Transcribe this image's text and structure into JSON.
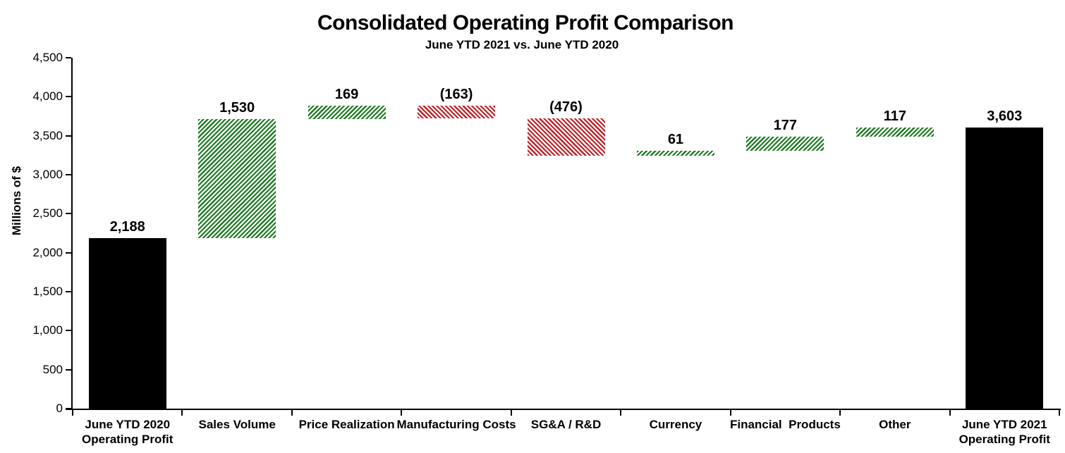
{
  "chart_data": {
    "type": "bar",
    "subtype": "waterfall",
    "title": "Consolidated Operating Profit Comparison",
    "subtitle": "June YTD 2021 vs. June YTD 2020",
    "xlabel": "",
    "ylabel": "Millions of $",
    "ylim": [
      0,
      4500
    ],
    "ytick_step": 500,
    "ytick_labels": [
      "0",
      "500",
      "1,000",
      "1,500",
      "2,000",
      "2,500",
      "3,000",
      "3,500",
      "4,000",
      "4,500"
    ],
    "grid": false,
    "legend": false,
    "categories": [
      "June YTD 2020\nOperating Profit",
      "Sales Volume",
      "Price Realization",
      "Manufacturing Costs",
      "SG&A / R&D",
      "Currency",
      "Financial  Products",
      "Other",
      "June YTD 2021\nOperating Profit"
    ],
    "bars": [
      {
        "label": "June YTD 2020\nOperating Profit",
        "value": 2188,
        "display": "2,188",
        "kind": "total"
      },
      {
        "label": "Sales Volume",
        "value": 1530,
        "display": "1,530",
        "kind": "increase"
      },
      {
        "label": "Price Realization",
        "value": 169,
        "display": "169",
        "kind": "increase"
      },
      {
        "label": "Manufacturing Costs",
        "value": -163,
        "display": "(163)",
        "kind": "decrease"
      },
      {
        "label": "SG&A / R&D",
        "value": -476,
        "display": "(476)",
        "kind": "decrease"
      },
      {
        "label": "Currency",
        "value": 61,
        "display": "61",
        "kind": "increase"
      },
      {
        "label": "Financial  Products",
        "value": 177,
        "display": "177",
        "kind": "increase"
      },
      {
        "label": "Other",
        "value": 117,
        "display": "117",
        "kind": "increase"
      },
      {
        "label": "June YTD 2021\nOperating Profit",
        "value": 3603,
        "display": "3,603",
        "kind": "total"
      }
    ],
    "colors": {
      "total": "#000000",
      "increase": "#1e7b22",
      "decrease": "#c02127",
      "hatch_background": "#ffffff",
      "axis": "#000000",
      "text": "#000000"
    },
    "hatch": {
      "increase_direction": "forward-slash",
      "decrease_direction": "back-slash"
    }
  }
}
